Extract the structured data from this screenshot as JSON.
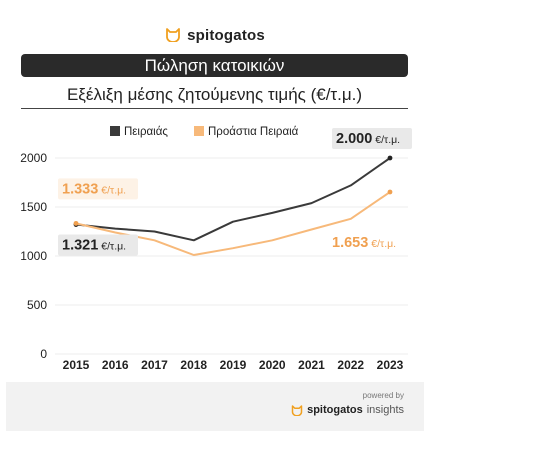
{
  "header": {
    "logo_text": "spitogatos",
    "banner": "Πώληση κατοικιών",
    "subtitle": "Εξέλιξη μέσης ζητούμενης τιμής (€/τ.μ.)"
  },
  "footer": {
    "powered_by": "powered by",
    "brand_main": "spitogatos",
    "brand_sub": "insights"
  },
  "icons": {
    "logo": "cat-icon",
    "footer_logo": "cat-icon"
  },
  "colors": {
    "piraeus": "#3a3a3a",
    "suburbs": "#f7b97a",
    "suburbs_label": "#f0a050",
    "banner_bg": "#2a2a2a"
  },
  "chart_data": {
    "type": "line",
    "x": [
      "2015",
      "2016",
      "2017",
      "2018",
      "2019",
      "2020",
      "2021",
      "2022",
      "2023"
    ],
    "series": [
      {
        "name": "Πειραιάς",
        "values": [
          1321,
          1280,
          1250,
          1160,
          1350,
          1440,
          1540,
          1720,
          2000
        ]
      },
      {
        "name": "Προάστια Πειραιά",
        "values": [
          1333,
          1240,
          1160,
          1010,
          1080,
          1160,
          1270,
          1380,
          1653
        ]
      }
    ],
    "yticks": [
      "0",
      "500",
      "1000",
      "1500",
      "2000"
    ],
    "ylim": [
      0,
      2000
    ],
    "legend": "top",
    "grid": true,
    "annotations": [
      {
        "series": 0,
        "point": 0,
        "value": "1.321",
        "unit": "€/τ.μ."
      },
      {
        "series": 1,
        "point": 0,
        "value": "1.333",
        "unit": "€/τ.μ."
      },
      {
        "series": 0,
        "point": 8,
        "value": "2.000",
        "unit": "€/τ.μ."
      },
      {
        "series": 1,
        "point": 8,
        "value": "1.653",
        "unit": "€/τ.μ."
      }
    ]
  }
}
